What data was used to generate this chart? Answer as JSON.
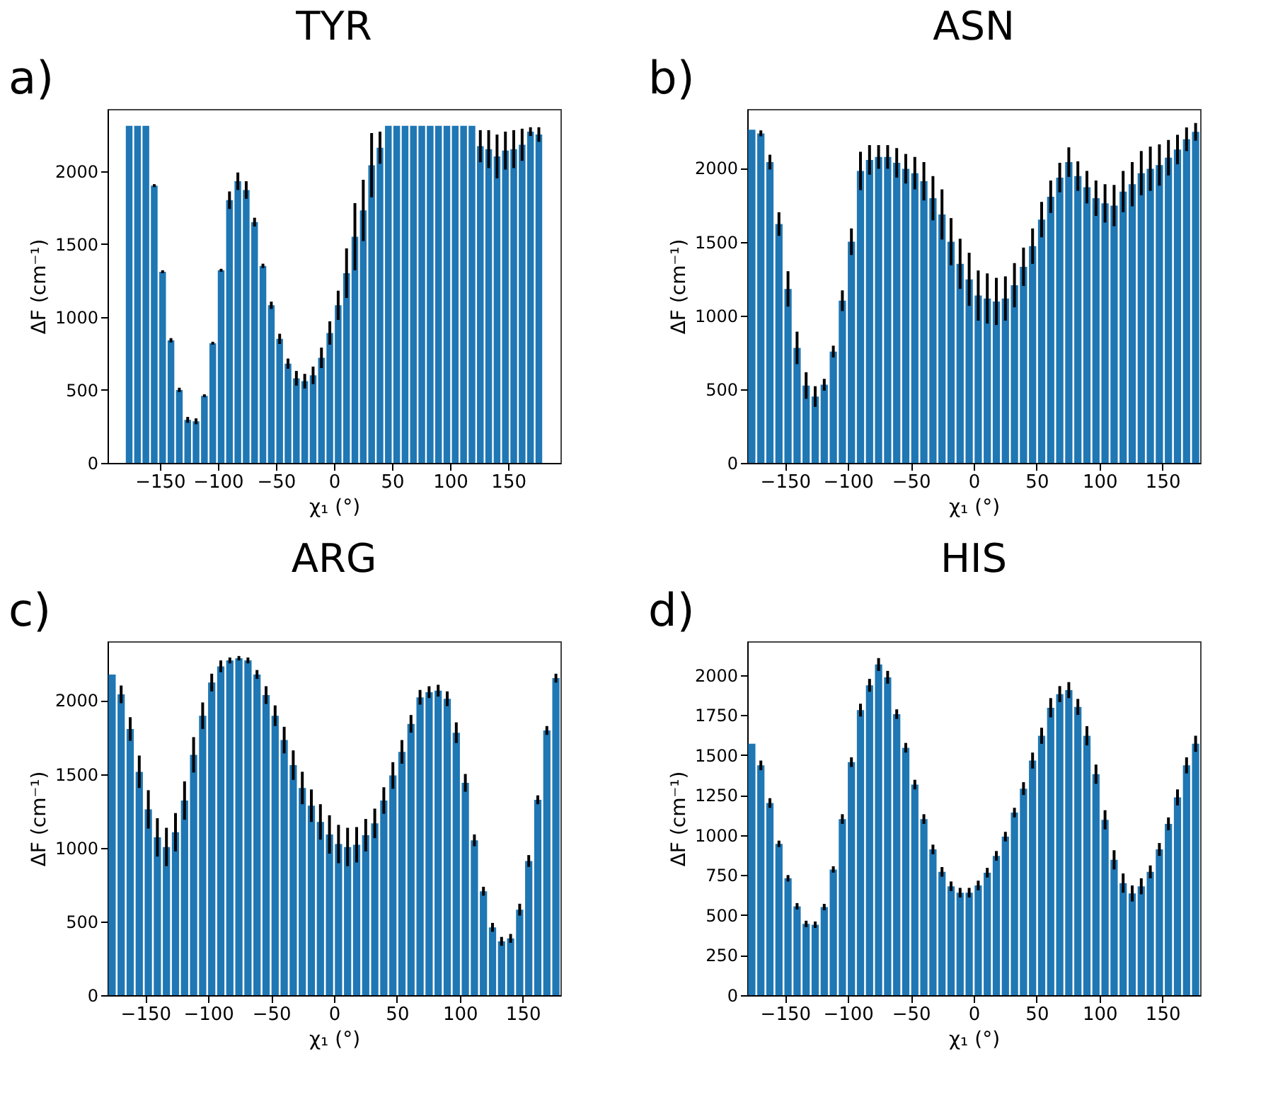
{
  "chart_data": [
    {
      "type": "bar",
      "title": "TYR",
      "xlabel": "χ₁ (°)",
      "ylabel": "ΔF (cm⁻¹)",
      "annotations": [
        "a)"
      ],
      "color": "#1f77b4",
      "xlim": [
        -195,
        195
      ],
      "xticks": [
        -150,
        -100,
        -50,
        0,
        50,
        100,
        150
      ],
      "ylim": [
        0,
        2425
      ],
      "yticks": [
        0,
        500,
        1000,
        1500,
        2000
      ],
      "x": [
        -176.4,
        -169.2,
        -162.0,
        -154.8,
        -147.6,
        -140.4,
        -133.2,
        -126.0,
        -118.8,
        -111.6,
        -104.4,
        -97.2,
        -90.0,
        -82.8,
        -75.6,
        -68.4,
        -61.2,
        -54.0,
        -46.8,
        -39.6,
        -32.4,
        -25.2,
        -18.0,
        -10.8,
        -3.6,
        3.6,
        10.8,
        18.0,
        25.2,
        32.4,
        39.6,
        46.8,
        54.0,
        61.2,
        68.4,
        75.6,
        82.8,
        90.0,
        97.2,
        104.4,
        111.6,
        118.8,
        126.0,
        133.2,
        140.4,
        147.6,
        154.8,
        162.0,
        169.2,
        176.4
      ],
      "values": [
        2310,
        2310,
        2310,
        1900,
        1310,
        840,
        500,
        295,
        285,
        460,
        820,
        1320,
        1800,
        1930,
        1870,
        1650,
        1350,
        1080,
        850,
        680,
        580,
        560,
        600,
        720,
        890,
        1080,
        1300,
        1550,
        1730,
        2040,
        2160,
        2310,
        2310,
        2310,
        2310,
        2310,
        2310,
        2310,
        2310,
        2310,
        2310,
        2310,
        2170,
        2150,
        2100,
        2140,
        2150,
        2180,
        2270,
        2250
      ],
      "errors": [
        null,
        null,
        null,
        10,
        10,
        15,
        15,
        20,
        20,
        10,
        10,
        10,
        60,
        60,
        60,
        30,
        15,
        25,
        35,
        35,
        50,
        50,
        60,
        70,
        80,
        100,
        170,
        230,
        210,
        220,
        110,
        null,
        null,
        null,
        null,
        null,
        null,
        null,
        null,
        null,
        null,
        null,
        110,
        130,
        150,
        130,
        130,
        110,
        30,
        50
      ]
    },
    {
      "type": "bar",
      "title": "ASN",
      "xlabel": "χ₁ (°)",
      "ylabel": "ΔF (cm⁻¹)",
      "annotations": [
        "b)"
      ],
      "color": "#1f77b4",
      "xlim": [
        -180,
        180
      ],
      "xticks": [
        -150,
        -100,
        -50,
        0,
        50,
        100,
        150
      ],
      "ylim": [
        0,
        2400
      ],
      "yticks": [
        0,
        500,
        1000,
        1500,
        2000
      ],
      "x": [
        -176.4,
        -169.2,
        -162.0,
        -154.8,
        -147.6,
        -140.4,
        -133.2,
        -126.0,
        -118.8,
        -111.6,
        -104.4,
        -97.2,
        -90.0,
        -82.8,
        -75.6,
        -68.4,
        -61.2,
        -54.0,
        -46.8,
        -39.6,
        -32.4,
        -25.2,
        -18.0,
        -10.8,
        -3.6,
        3.6,
        10.8,
        18.0,
        25.2,
        32.4,
        39.6,
        46.8,
        54.0,
        61.2,
        68.4,
        75.6,
        82.8,
        90.0,
        97.2,
        104.4,
        111.6,
        118.8,
        126.0,
        133.2,
        140.4,
        147.6,
        154.8,
        162.0,
        169.2,
        176.4
      ],
      "values": [
        2260,
        2235,
        2040,
        1620,
        1180,
        780,
        525,
        450,
        530,
        755,
        1100,
        1500,
        1980,
        2055,
        2075,
        2075,
        2035,
        1995,
        1965,
        1910,
        1795,
        1685,
        1500,
        1350,
        1245,
        1135,
        1115,
        1095,
        1115,
        1205,
        1330,
        1470,
        1650,
        1805,
        1935,
        2040,
        1945,
        1870,
        1795,
        1760,
        1745,
        1840,
        1890,
        1965,
        1995,
        2020,
        2070,
        2125,
        2195,
        2245
      ],
      "errors": [
        null,
        20,
        50,
        80,
        120,
        110,
        90,
        70,
        40,
        40,
        70,
        90,
        130,
        100,
        80,
        80,
        100,
        100,
        110,
        130,
        150,
        170,
        160,
        170,
        180,
        170,
        170,
        160,
        150,
        150,
        130,
        120,
        120,
        110,
        100,
        100,
        100,
        110,
        120,
        130,
        140,
        140,
        150,
        150,
        150,
        140,
        120,
        100,
        80,
        60
      ]
    },
    {
      "type": "bar",
      "title": "ARG",
      "xlabel": "χ₁ (°)",
      "ylabel": "ΔF (cm⁻¹)",
      "annotations": [
        "c)"
      ],
      "color": "#1f77b4",
      "xlim": [
        -180,
        180
      ],
      "xticks": [
        -150,
        -100,
        -50,
        0,
        50,
        100,
        150
      ],
      "ylim": [
        0,
        2400
      ],
      "yticks": [
        0,
        500,
        1000,
        1500,
        2000
      ],
      "x": [
        -176.4,
        -169.2,
        -162.0,
        -154.8,
        -147.6,
        -140.4,
        -133.2,
        -126.0,
        -118.8,
        -111.6,
        -104.4,
        -97.2,
        -90.0,
        -82.8,
        -75.6,
        -68.4,
        -61.2,
        -54.0,
        -46.8,
        -39.6,
        -32.4,
        -25.2,
        -18.0,
        -10.8,
        -3.6,
        3.6,
        10.8,
        18.0,
        25.2,
        32.4,
        39.6,
        46.8,
        54.0,
        61.2,
        68.4,
        75.6,
        82.8,
        90.0,
        97.2,
        104.4,
        111.6,
        118.8,
        126.0,
        133.2,
        140.4,
        147.6,
        154.8,
        162.0,
        169.2,
        176.4
      ],
      "values": [
        2175,
        2040,
        1805,
        1515,
        1260,
        1070,
        1005,
        1105,
        1320,
        1630,
        1895,
        2120,
        2230,
        2270,
        2285,
        2270,
        2175,
        2035,
        1895,
        1730,
        1560,
        1405,
        1285,
        1175,
        1090,
        1025,
        1005,
        1020,
        1085,
        1165,
        1320,
        1490,
        1650,
        1840,
        2020,
        2055,
        2065,
        2010,
        1780,
        1440,
        1050,
        705,
        460,
        365,
        385,
        580,
        910,
        1325,
        1795,
        2150
      ],
      "errors": [
        null,
        60,
        80,
        110,
        130,
        130,
        130,
        130,
        130,
        120,
        90,
        60,
        40,
        20,
        15,
        20,
        30,
        60,
        70,
        90,
        100,
        110,
        110,
        120,
        130,
        130,
        130,
        120,
        110,
        100,
        90,
        90,
        80,
        60,
        50,
        40,
        40,
        50,
        70,
        60,
        40,
        30,
        30,
        30,
        30,
        40,
        40,
        30,
        30,
        30
      ]
    },
    {
      "type": "bar",
      "title": "HIS",
      "xlabel": "χ₁ (°)",
      "ylabel": "ΔF (cm⁻¹)",
      "annotations": [
        "d)"
      ],
      "color": "#1f77b4",
      "xlim": [
        -180,
        180
      ],
      "xticks": [
        -150,
        -100,
        -50,
        0,
        50,
        100,
        150
      ],
      "ylim": [
        0,
        2210
      ],
      "yticks": [
        0,
        250,
        500,
        750,
        1000,
        1250,
        1500,
        1750,
        2000
      ],
      "x": [
        -176.4,
        -169.2,
        -162.0,
        -154.8,
        -147.6,
        -140.4,
        -133.2,
        -126.0,
        -118.8,
        -111.6,
        -104.4,
        -97.2,
        -90.0,
        -82.8,
        -75.6,
        -68.4,
        -61.2,
        -54.0,
        -46.8,
        -39.6,
        -32.4,
        -25.2,
        -18.0,
        -10.8,
        -3.6,
        3.6,
        10.8,
        18.0,
        25.2,
        32.4,
        39.6,
        46.8,
        54.0,
        61.2,
        68.4,
        75.6,
        82.8,
        90.0,
        97.2,
        104.4,
        111.6,
        118.8,
        126.0,
        133.2,
        140.4,
        147.6,
        154.8,
        162.0,
        169.2,
        176.4
      ],
      "values": [
        1570,
        1435,
        1200,
        945,
        730,
        555,
        445,
        440,
        550,
        785,
        1100,
        1455,
        1780,
        1935,
        2065,
        1985,
        1755,
        1545,
        1315,
        1100,
        910,
        770,
        680,
        640,
        640,
        685,
        765,
        870,
        990,
        1140,
        1290,
        1465,
        1620,
        1795,
        1880,
        1905,
        1800,
        1620,
        1380,
        1095,
        845,
        700,
        635,
        680,
        770,
        910,
        1070,
        1235,
        1435,
        1570
      ],
      "errors": [
        null,
        30,
        30,
        20,
        20,
        20,
        20,
        20,
        20,
        20,
        30,
        30,
        40,
        40,
        40,
        40,
        30,
        30,
        30,
        30,
        30,
        30,
        30,
        30,
        30,
        30,
        30,
        30,
        30,
        30,
        40,
        50,
        50,
        60,
        50,
        50,
        50,
        60,
        60,
        60,
        60,
        60,
        50,
        50,
        40,
        40,
        40,
        50,
        50,
        50
      ]
    }
  ]
}
